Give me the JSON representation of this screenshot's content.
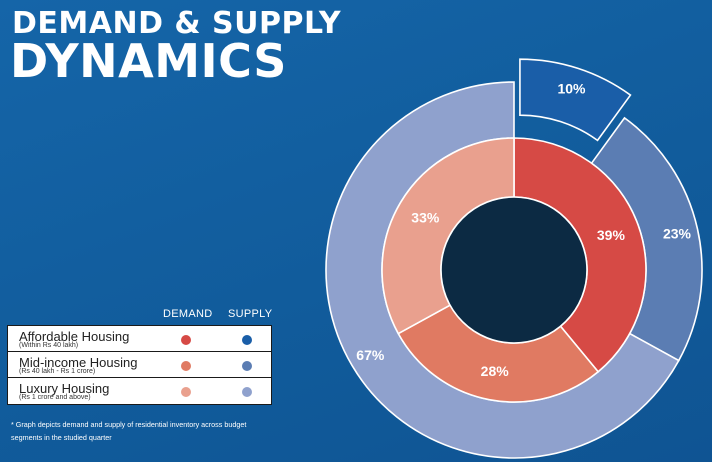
{
  "header": {
    "title_line1": "DEMAND & SUPPLY",
    "title_line2": "DYNAMICS"
  },
  "legend": {
    "col_demand": "DEMAND",
    "col_supply": "SUPPLY",
    "rows": [
      {
        "name": "Affordable Housing",
        "sub": "(Within Rs 40 lakh)",
        "demand_color": "#d64a45",
        "supply_color": "#1a5ea8"
      },
      {
        "name": "Mid-income Housing",
        "sub": "(Rs 40 lakh - Rs 1 crore)",
        "demand_color": "#e07a62",
        "supply_color": "#5b7db3"
      },
      {
        "name": "Luxury Housing",
        "sub": "(Rs 1 crore and above)",
        "demand_color": "#e9a08e",
        "supply_color": "#8fa1cd"
      }
    ]
  },
  "footnote": "* Graph depicts demand and supply of residential inventory across budget segments in the studied quarter",
  "colors": {
    "background": "#1263a6",
    "center": "#0c2a43"
  },
  "chart_data": {
    "type": "pie",
    "subtype": "nested-donut",
    "series": [
      {
        "name": "DEMAND",
        "ring": "inner",
        "categories": [
          "Affordable Housing",
          "Mid-income Housing",
          "Luxury Housing"
        ],
        "values": [
          39,
          28,
          33
        ],
        "labels": [
          "39%",
          "28%",
          "33%"
        ],
        "colors": [
          "#d64a45",
          "#e07a62",
          "#e9a08e"
        ]
      },
      {
        "name": "SUPPLY",
        "ring": "outer",
        "categories": [
          "Affordable Housing",
          "Mid-income Housing",
          "Luxury Housing"
        ],
        "values": [
          10,
          23,
          67
        ],
        "labels": [
          "10%",
          "23%",
          "67%"
        ],
        "colors": [
          "#1a5ea8",
          "#5b7db3",
          "#8fa1cd"
        ]
      }
    ]
  }
}
